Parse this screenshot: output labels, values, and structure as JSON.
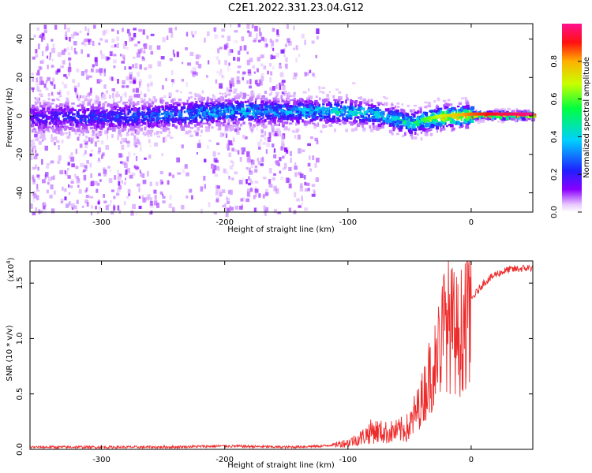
{
  "title": "C2E1.2022.331.23.04.G12",
  "chart_data": [
    {
      "type": "heatmap",
      "xlabel": "Height of straight line (km)",
      "ylabel": "Frequency (Hz)",
      "xlim": [
        -358,
        50
      ],
      "ylim": [
        -50,
        48
      ],
      "xticks": [
        -300,
        -200,
        -100,
        0
      ],
      "yticks": [
        -40,
        -20,
        0,
        20,
        40
      ],
      "colorbar": {
        "label": "Normalized spectral amplitude",
        "range": [
          0.0,
          1.0
        ],
        "ticks": [
          "0.0",
          "0.2",
          "0.4",
          "0.6",
          "0.8"
        ],
        "colormap": "rainbow (violet → red)"
      },
      "ridge": {
        "description": "Dominant frequency ridge near 0 Hz, noisy broadband scatter below -130 km",
        "x": [
          -358,
          -300,
          -250,
          -200,
          -150,
          -100,
          -75,
          -50,
          -25,
          0,
          25,
          50
        ],
        "frequency_hz": [
          0,
          0,
          1,
          3,
          3,
          3,
          1,
          -3,
          0,
          1,
          1,
          1
        ],
        "amplitude": [
          0.2,
          0.25,
          0.3,
          0.4,
          0.35,
          0.45,
          0.4,
          0.5,
          0.7,
          0.85,
          0.95,
          1.0
        ]
      }
    },
    {
      "type": "line",
      "xlabel": "Height of straight line (km)",
      "ylabel": "SNR (10 * v/v)",
      "scale_label": "(x10",
      "scale_exponent": "4",
      "scale_suffix": ")",
      "xlim": [
        -358,
        50
      ],
      "ylim": [
        0.0,
        1.7
      ],
      "xticks": [
        -300,
        -200,
        -100,
        0
      ],
      "yticks": [
        "0.0",
        "0.5",
        "1.0",
        "1.5"
      ],
      "color": "#ee2b2b",
      "series": [
        {
          "x": [
            -358,
            -300,
            -250,
            -200,
            -150,
            -120,
            -100,
            -90,
            -80,
            -70,
            -60,
            -50,
            -40,
            -30,
            -20,
            -10,
            0,
            10,
            20,
            30,
            40,
            50
          ],
          "y": [
            0.02,
            0.02,
            0.02,
            0.03,
            0.02,
            0.03,
            0.06,
            0.1,
            0.17,
            0.15,
            0.16,
            0.2,
            0.45,
            0.8,
            1.15,
            1.0,
            1.35,
            1.5,
            1.58,
            1.62,
            1.63,
            1.64
          ]
        }
      ]
    }
  ]
}
